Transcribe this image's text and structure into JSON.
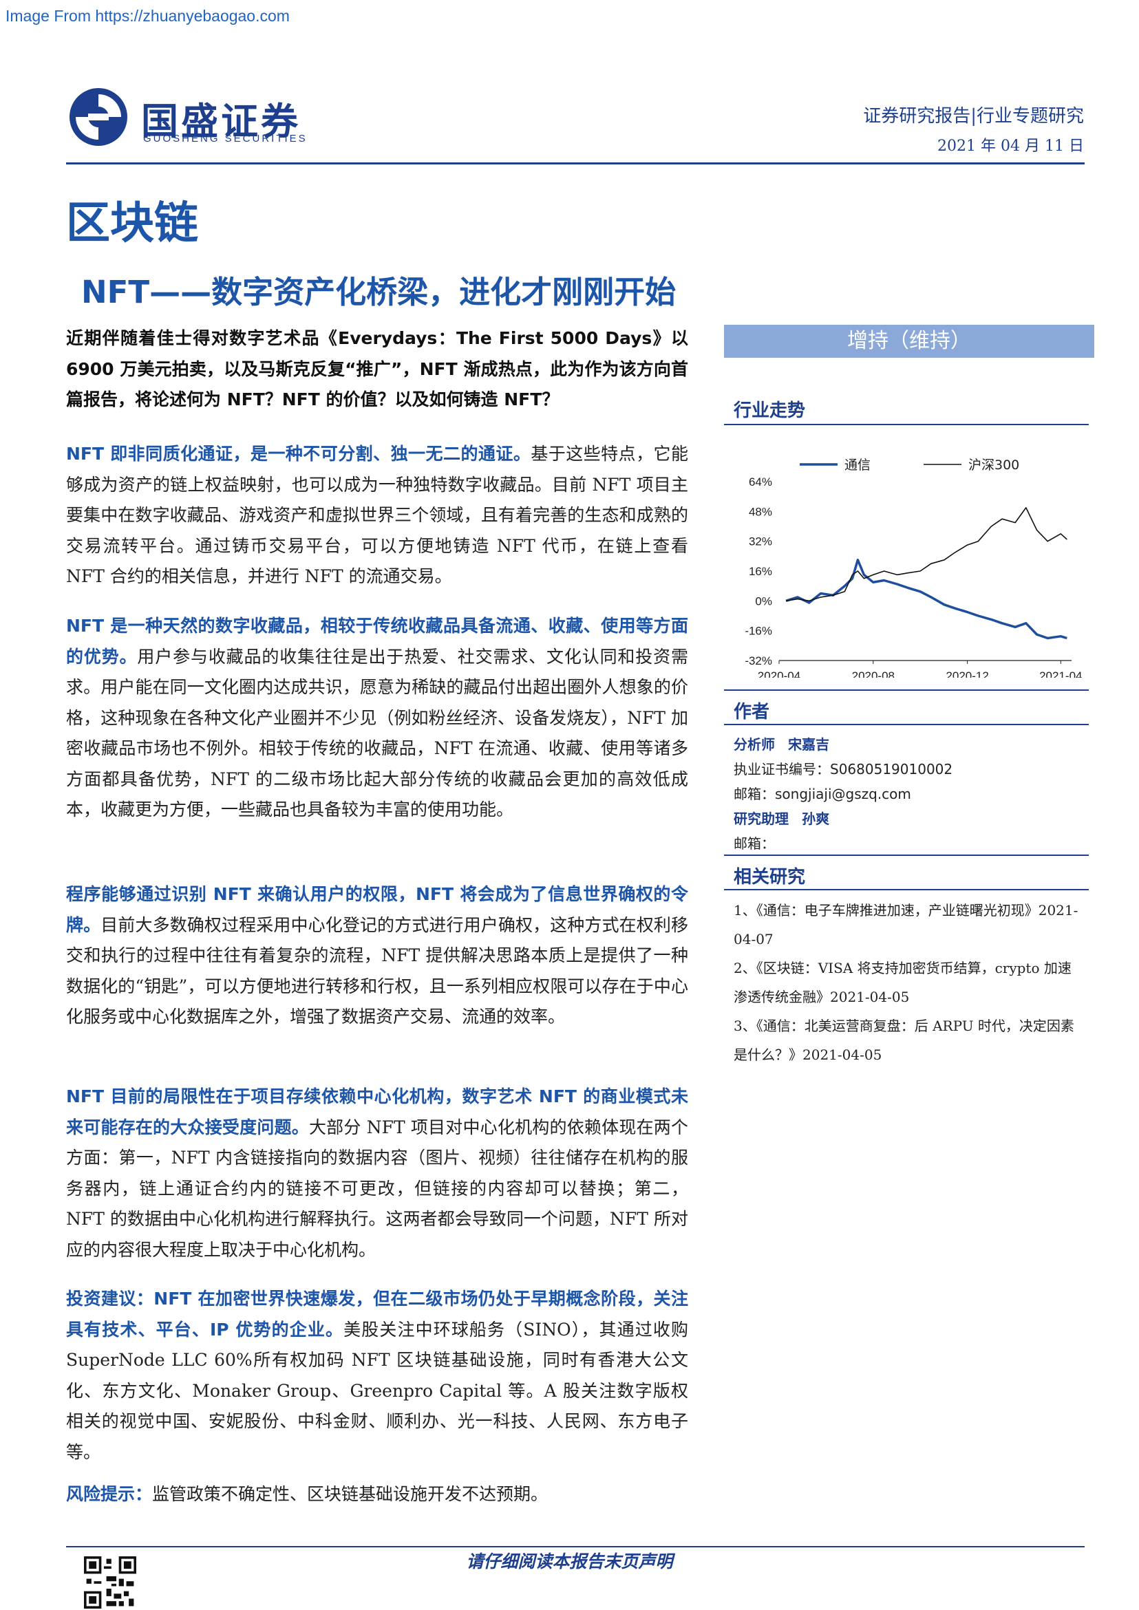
{
  "watermark": "Image From https://zhuanyebaogao.com",
  "header": {
    "logo_text": "国盛证券",
    "logo_sub": "GUOSHENG SECURITIES",
    "report_type": "证券研究报告|行业专题研究",
    "date": "2021 年 04 月 11 日"
  },
  "industry": "区块链",
  "title": "NFT——数字资产化桥梁，进化才刚刚开始",
  "summary": "近期伴随着佳士得对数字艺术品《Everydays：The First 5000 Days》以 6900 万美元拍卖，以及马斯克反复“推广”，NFT 渐成热点，此为作为该方向首篇报告，将论述何为 NFT？NFT 的价值？以及如何铸造 NFT？",
  "paragraphs": [
    {
      "lead": "NFT 即非同质化通证，是一种不可分割、独一无二的通证。",
      "body": "基于这些特点，它能够成为资产的链上权益映射，也可以成为一种独特数字收藏品。目前 NFT 项目主要集中在数字收藏品、游戏资产和虚拟世界三个领域，且有着完善的生态和成熟的交易流转平台。通过铸币交易平台，可以方便地铸造 NFT 代币，在链上查看 NFT 合约的相关信息，并进行 NFT 的流通交易。"
    },
    {
      "lead": "NFT 是一种天然的数字收藏品，相较于传统收藏品具备流通、收藏、使用等方面的优势。",
      "body": "用户参与收藏品的收集往往是出于热爱、社交需求、文化认同和投资需求。用户能在同一文化圈内达成共识，愿意为稀缺的藏品付出超出圈外人想象的价格，这种现象在各种文化产业圈并不少见（例如粉丝经济、设备发烧友），NFT 加密收藏品市场也不例外。相较于传统的收藏品，NFT 在流通、收藏、使用等诸多方面都具备优势，NFT 的二级市场比起大部分传统的收藏品会更加的高效低成本，收藏更为方便，一些藏品也具备较为丰富的使用功能。"
    },
    {
      "lead": "程序能够通过识别 NFT 来确认用户的权限，NFT 将会成为了信息世界确权的令牌。",
      "body": "目前大多数确权过程采用中心化登记的方式进行用户确权，这种方式在权利移交和执行的过程中往往有着复杂的流程，NFT 提供解决思路本质上是提供了一种数据化的“钥匙”，可以方便地进行转移和行权，且一系列相应权限可以存在于中心化服务或中心化数据库之外，增强了数据资产交易、流通的效率。"
    },
    {
      "lead": "NFT 目前的局限性在于项目存续依赖中心化机构，数字艺术 NFT 的商业模式未来可能存在的大众接受度问题。",
      "body": "大部分 NFT 项目对中心化机构的依赖体现在两个方面：第一，NFT 内含链接指向的数据内容（图片、视频）往往储存在机构的服务器内，链上通证合约内的链接不可更改，但链接的内容却可以替换；第二，NFT 的数据由中心化机构进行解释执行。这两者都会导致同一个问题，NFT 所对应的内容很大程度上取决于中心化机构。"
    },
    {
      "lead": "投资建议：NFT 在加密世界快速爆发，但在二级市场仍处于早期概念阶段，关注具有技术、平台、IP 优势的企业。",
      "body": "美股关注中环球船务（SINO），其通过收购 SuperNode LLC 60%所有权加码 NFT 区块链基础设施，同时有香港大公文化、东方文化、Monaker Group、Greenpro Capital 等。A 股关注数字版权相关的视觉中国、安妮股份、中科金财、顺利办、光一科技、人民网、东方电子等。"
    },
    {
      "lead": "风险提示：",
      "body": "监管政策不确定性、区块链基础设施开发不达预期。"
    }
  ],
  "sidebar": {
    "rating": "增持（维持）",
    "trend_heading": "行业走势",
    "author_heading": "作者",
    "analyst_role": "分析师",
    "analyst_name": "宋嘉吉",
    "license": "执业证书编号：S0680519010002",
    "email": "邮箱：songjiaji@gszq.com",
    "assistant_role": "研究助理",
    "assistant_name": "孙爽",
    "assistant_email": "邮箱：",
    "related_heading": "相关研究",
    "related": [
      "1、《通信：电子车牌推进加速，产业链曙光初现》2021-04-07",
      "2、《区块链：VISA 将支持加密货币结算，crypto 加速渗透传统金融》2021-04-05",
      "3、《通信：北美运营商复盘：后 ARPU 时代，决定因素是什么？》2021-04-05"
    ]
  },
  "chart_data": {
    "type": "line",
    "title": "",
    "xlabel": "",
    "ylabel": "",
    "x_ticks": [
      "2020-04",
      "2020-08",
      "2020-12",
      "2021-04"
    ],
    "y_ticks": [
      "64%",
      "48%",
      "32%",
      "16%",
      "0%",
      "-16%",
      "-32%"
    ],
    "ylim": [
      -32,
      64
    ],
    "legend_position": "top",
    "series": [
      {
        "name": "通信",
        "color": "#1d4f9e",
        "x": [
          "2020-04-10",
          "2020-04-25",
          "2020-05-10",
          "2020-05-25",
          "2020-06-10",
          "2020-06-25",
          "2020-07-05",
          "2020-07-12",
          "2020-07-20",
          "2020-08-01",
          "2020-08-15",
          "2020-09-01",
          "2020-09-15",
          "2020-10-01",
          "2020-10-15",
          "2020-11-01",
          "2020-11-15",
          "2020-12-01",
          "2020-12-15",
          "2021-01-01",
          "2021-01-15",
          "2021-02-01",
          "2021-02-15",
          "2021-03-01",
          "2021-03-15",
          "2021-04-01",
          "2021-04-09"
        ],
        "y": [
          0,
          2,
          -1,
          4,
          3,
          8,
          12,
          22,
          14,
          10,
          11,
          9,
          7,
          5,
          2,
          -2,
          -4,
          -6,
          -8,
          -10,
          -12,
          -14,
          -12,
          -18,
          -20,
          -19,
          -20
        ]
      },
      {
        "name": "沪深300",
        "color": "#111111",
        "x": [
          "2020-04-10",
          "2020-04-25",
          "2020-05-10",
          "2020-05-25",
          "2020-06-10",
          "2020-06-25",
          "2020-07-05",
          "2020-07-12",
          "2020-07-20",
          "2020-08-01",
          "2020-08-15",
          "2020-09-01",
          "2020-09-15",
          "2020-10-01",
          "2020-10-15",
          "2020-11-01",
          "2020-11-15",
          "2020-12-01",
          "2020-12-15",
          "2021-01-01",
          "2021-01-15",
          "2021-02-01",
          "2021-02-15",
          "2021-03-01",
          "2021-03-15",
          "2021-04-01",
          "2021-04-09"
        ],
        "y": [
          0,
          1,
          0,
          2,
          3,
          5,
          14,
          16,
          12,
          14,
          16,
          14,
          15,
          16,
          20,
          22,
          26,
          30,
          32,
          40,
          44,
          42,
          50,
          38,
          32,
          36,
          33
        ]
      }
    ]
  },
  "footer": {
    "text": "请仔细阅读本报告末页声明"
  }
}
